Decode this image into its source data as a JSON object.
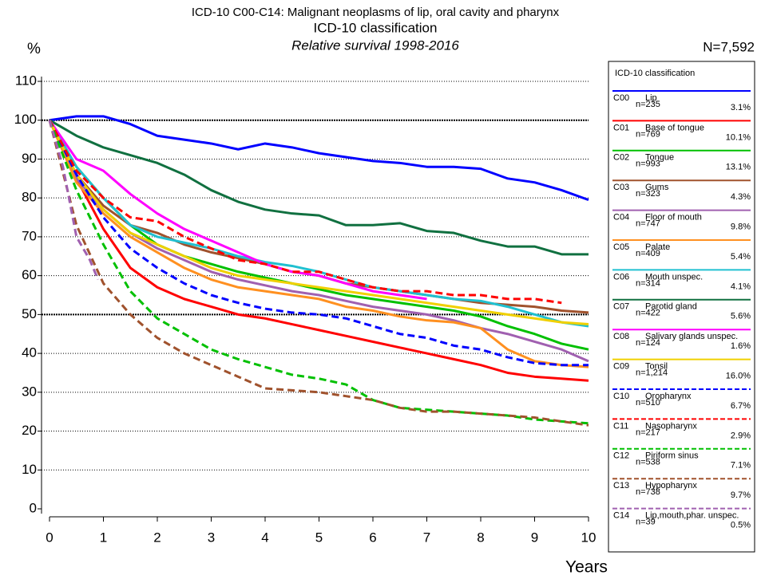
{
  "chart_data": {
    "type": "line",
    "title": "ICD-10 C00-C14: Malignant neoplasms of lip, oral cavity and pharynx",
    "subtitle": "ICD-10 classification",
    "subtitle2": "Relative survival 1998-2016",
    "y_label": "%",
    "x_label": "Years",
    "total": "N=7,592",
    "legend_title": "ICD-10 classification",
    "xlim": [
      0,
      10
    ],
    "xticks": [
      0,
      1,
      2,
      3,
      4,
      5,
      6,
      7,
      8,
      9,
      10
    ],
    "ylim": [
      0,
      110
    ],
    "yticks": [
      0,
      10,
      20,
      30,
      40,
      50,
      60,
      70,
      80,
      90,
      100,
      110
    ],
    "grid": true,
    "bold_gridlines": [
      50,
      100
    ],
    "x": [
      0,
      0.5,
      1,
      1.5,
      2,
      2.5,
      3,
      3.5,
      4,
      4.5,
      5,
      5.5,
      6,
      6.5,
      7,
      7.5,
      8,
      8.5,
      9,
      9.5,
      10
    ],
    "series": [
      {
        "code": "C00",
        "name": "Lip",
        "n": "n=235",
        "share": "3.1%",
        "color": "#0000ff",
        "dashed": false,
        "values": [
          100,
          101,
          101,
          99,
          96,
          95,
          94,
          92.5,
          94,
          93,
          91.5,
          90.5,
          89.5,
          89,
          88,
          88,
          87.5,
          85,
          84,
          82,
          79.5
        ]
      },
      {
        "code": "C01",
        "name": "Base of tongue",
        "n": "n=769",
        "share": "10.1%",
        "color": "#ff0000",
        "dashed": false,
        "values": [
          100,
          85,
          72,
          62,
          57,
          54,
          52,
          50,
          49,
          47.5,
          46,
          44.5,
          43,
          41.5,
          40,
          38.5,
          37,
          35,
          34,
          33.5,
          33
        ]
      },
      {
        "code": "C02",
        "name": "Tongue",
        "n": "n=993",
        "share": "13.1%",
        "color": "#00c000",
        "dashed": false,
        "values": [
          100,
          88,
          80,
          73,
          68,
          65,
          63,
          61,
          59.5,
          58,
          56.5,
          55,
          54,
          53,
          52,
          51,
          49.5,
          47,
          45,
          42.5,
          41
        ]
      },
      {
        "code": "C03",
        "name": "Gums",
        "n": "n=323",
        "share": "4.3%",
        "color": "#a0522d",
        "dashed": false,
        "values": [
          100,
          86,
          78,
          73,
          71,
          68,
          66,
          64.5,
          63,
          61,
          60,
          58,
          57,
          56,
          55,
          54,
          53,
          52.5,
          52,
          51,
          50.5
        ]
      },
      {
        "code": "C04",
        "name": "Floor of mouth",
        "n": "n=747",
        "share": "9.8%",
        "color": "#a060b0",
        "dashed": false,
        "values": [
          100,
          85,
          77,
          71,
          67,
          64,
          61,
          59,
          57.5,
          56,
          55,
          53.5,
          52,
          51,
          50,
          48.5,
          46.5,
          45,
          43,
          41,
          38
        ]
      },
      {
        "code": "C05",
        "name": "Palate",
        "n": "n=409",
        "share": "5.4%",
        "color": "#ff9020",
        "dashed": false,
        "values": [
          100,
          84,
          76,
          70,
          66,
          62,
          59,
          57,
          56,
          55,
          54,
          52,
          51,
          49.5,
          48.5,
          48,
          46.5,
          41,
          38,
          37,
          36.5
        ]
      },
      {
        "code": "C06",
        "name": "Mouth unspec.",
        "n": "n=314",
        "share": "4.1%",
        "color": "#20c0d0",
        "dashed": false,
        "values": [
          100,
          88,
          80,
          73,
          70,
          68.5,
          67,
          65,
          63.5,
          62.5,
          61,
          59,
          57,
          56,
          55,
          54,
          53.5,
          52,
          50,
          48,
          47
        ]
      },
      {
        "code": "C07",
        "name": "Parotid gland",
        "n": "n=422",
        "share": "5.6%",
        "color": "#107040",
        "dashed": false,
        "values": [
          100,
          96,
          93,
          91,
          89,
          86,
          82,
          79,
          77,
          76,
          75.5,
          73,
          73,
          73.5,
          71.5,
          71,
          69,
          67.5,
          67.5,
          65.5,
          65.5
        ]
      },
      {
        "code": "C08",
        "name": "Salivary glands unspec.",
        "n": "n=124",
        "share": "1.6%",
        "color": "#ff00ff",
        "dashed": false,
        "values": [
          100,
          90,
          87,
          81,
          76,
          72,
          69,
          66,
          63,
          61,
          60,
          58,
          56,
          55,
          54,
          null,
          null,
          null,
          null,
          null,
          null
        ]
      },
      {
        "code": "C09",
        "name": "Tonsil",
        "n": "n=1,214",
        "share": "16.0%",
        "color": "#f0d000",
        "dashed": false,
        "values": [
          100,
          86,
          77,
          71,
          68,
          65,
          62,
          60,
          59,
          58,
          57,
          56,
          55,
          54,
          53,
          52,
          51,
          50,
          49,
          48,
          47.5
        ]
      },
      {
        "code": "C10",
        "name": "Oropharynx",
        "n": "n=510",
        "share": "6.7%",
        "color": "#0000ff",
        "dashed": true,
        "values": [
          100,
          86,
          75,
          67,
          62,
          58,
          55,
          53,
          51.5,
          50.5,
          50,
          49,
          47,
          45,
          44,
          42,
          41,
          39,
          37.5,
          37,
          37
        ]
      },
      {
        "code": "C11",
        "name": "Nasopharynx",
        "n": "n=217",
        "share": "2.9%",
        "color": "#ff0000",
        "dashed": true,
        "values": [
          100,
          87,
          80,
          75,
          74,
          70,
          67,
          64,
          63,
          61,
          61,
          59,
          57,
          56,
          56,
          55,
          55,
          54,
          54,
          53,
          null
        ]
      },
      {
        "code": "C12",
        "name": "Piriform sinus",
        "n": "n=538",
        "share": "7.1%",
        "color": "#00c000",
        "dashed": true,
        "values": [
          100,
          82,
          68,
          56,
          49,
          45,
          41,
          38.5,
          36.5,
          34.5,
          33.5,
          32,
          28,
          26,
          25.5,
          25,
          24.5,
          24,
          23,
          22.5,
          22
        ]
      },
      {
        "code": "C13",
        "name": "Hypopharynx",
        "n": "n=738",
        "share": "9.7%",
        "color": "#a0522d",
        "dashed": true,
        "values": [
          100,
          73,
          58,
          50,
          44,
          40,
          37,
          34,
          31,
          30.5,
          30,
          29,
          28,
          26,
          25,
          25,
          24.5,
          24,
          23.5,
          22.5,
          21.5
        ]
      },
      {
        "code": "C14",
        "name": "Lip,mouth,phar. unspec.",
        "n": "n=39",
        "share": "0.5%",
        "color": "#a060b0",
        "dashed": true,
        "x": [
          0,
          0.25,
          0.5,
          0.75,
          0.9
        ],
        "values": [
          100,
          88,
          70,
          64,
          59
        ]
      }
    ]
  }
}
